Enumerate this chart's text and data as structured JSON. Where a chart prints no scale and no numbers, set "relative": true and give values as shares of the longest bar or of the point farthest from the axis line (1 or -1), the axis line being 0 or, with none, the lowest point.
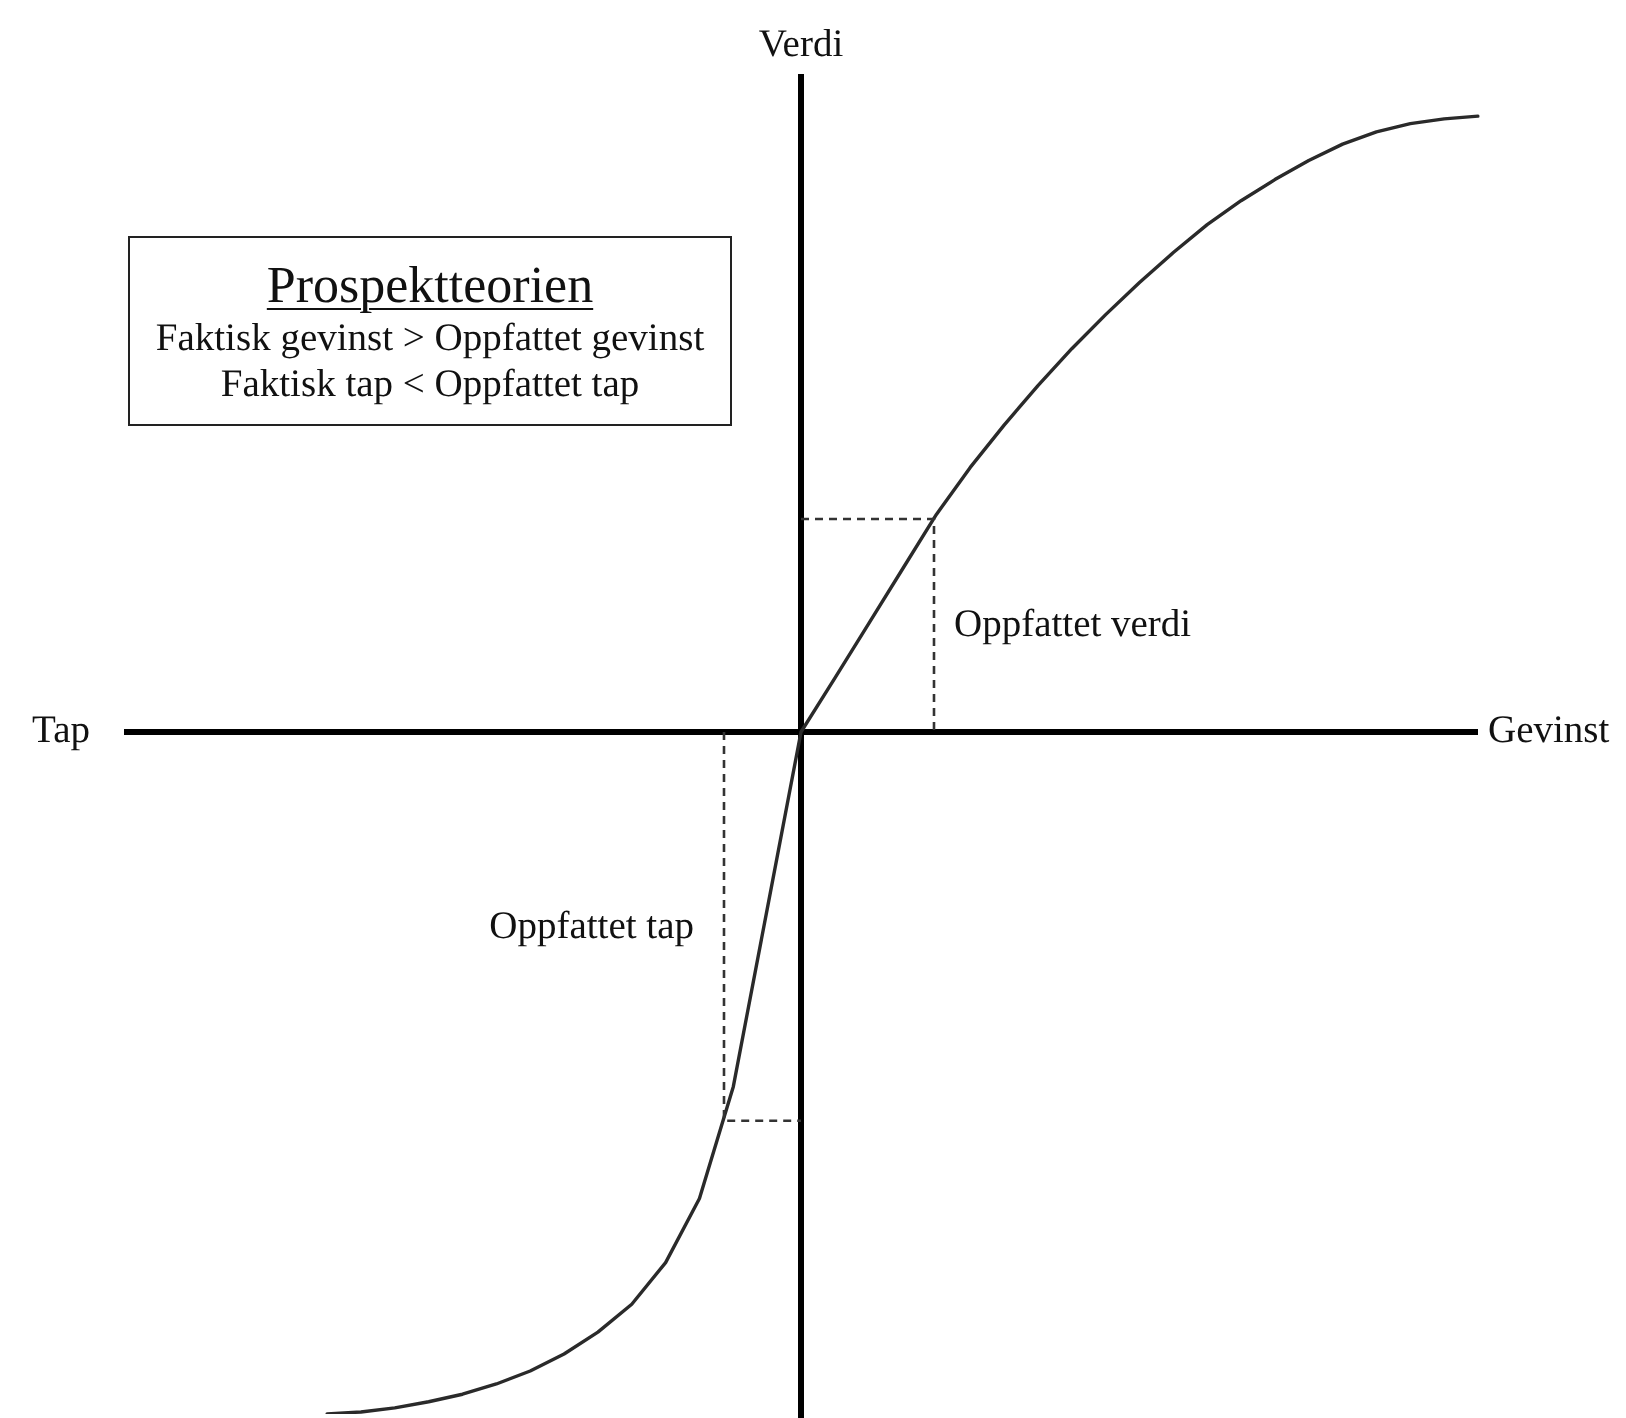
{
  "chart_data": {
    "type": "line",
    "title": "Prospektteorien",
    "xlabel": "Gevinst",
    "ylabel": "Verdi",
    "annotations": [
      "Tap",
      "Faktisk gevinst > Oppfattet gevinst",
      "Faktisk tap < Oppfattet tap",
      "Oppfattet verdi",
      "Oppfattet tap"
    ],
    "categories": [
      null,
      null,
      null,
      null,
      null,
      null,
      null,
      null,
      null,
      null,
      null,
      null,
      null,
      null,
      null,
      null,
      null,
      null,
      null,
      null,
      null,
      null,
      null,
      null,
      null,
      null,
      null,
      null,
      null,
      null,
      null,
      null,
      null,
      null,
      null,
      null,
      null,
      null,
      null,
      null,
      null
    ],
    "values": [
      null,
      null,
      null,
      null,
      null,
      null,
      -1,
      -0.997,
      -0.991,
      -0.982,
      -0.971,
      -0.956,
      -0.937,
      -0.912,
      -0.88,
      -0.839,
      -0.778,
      -0.684,
      -0.52,
      -0.26,
      0,
      0.079,
      0.159,
      0.239,
      0.319,
      0.388,
      0.45,
      0.508,
      0.562,
      0.612,
      0.659,
      0.703,
      0.744,
      0.779,
      0.81,
      0.838,
      0.862,
      0.88,
      0.892,
      0.899,
      0.903
    ],
    "color": "#2a2a2a",
    "relative": true,
    "marker": "none"
  }
}
